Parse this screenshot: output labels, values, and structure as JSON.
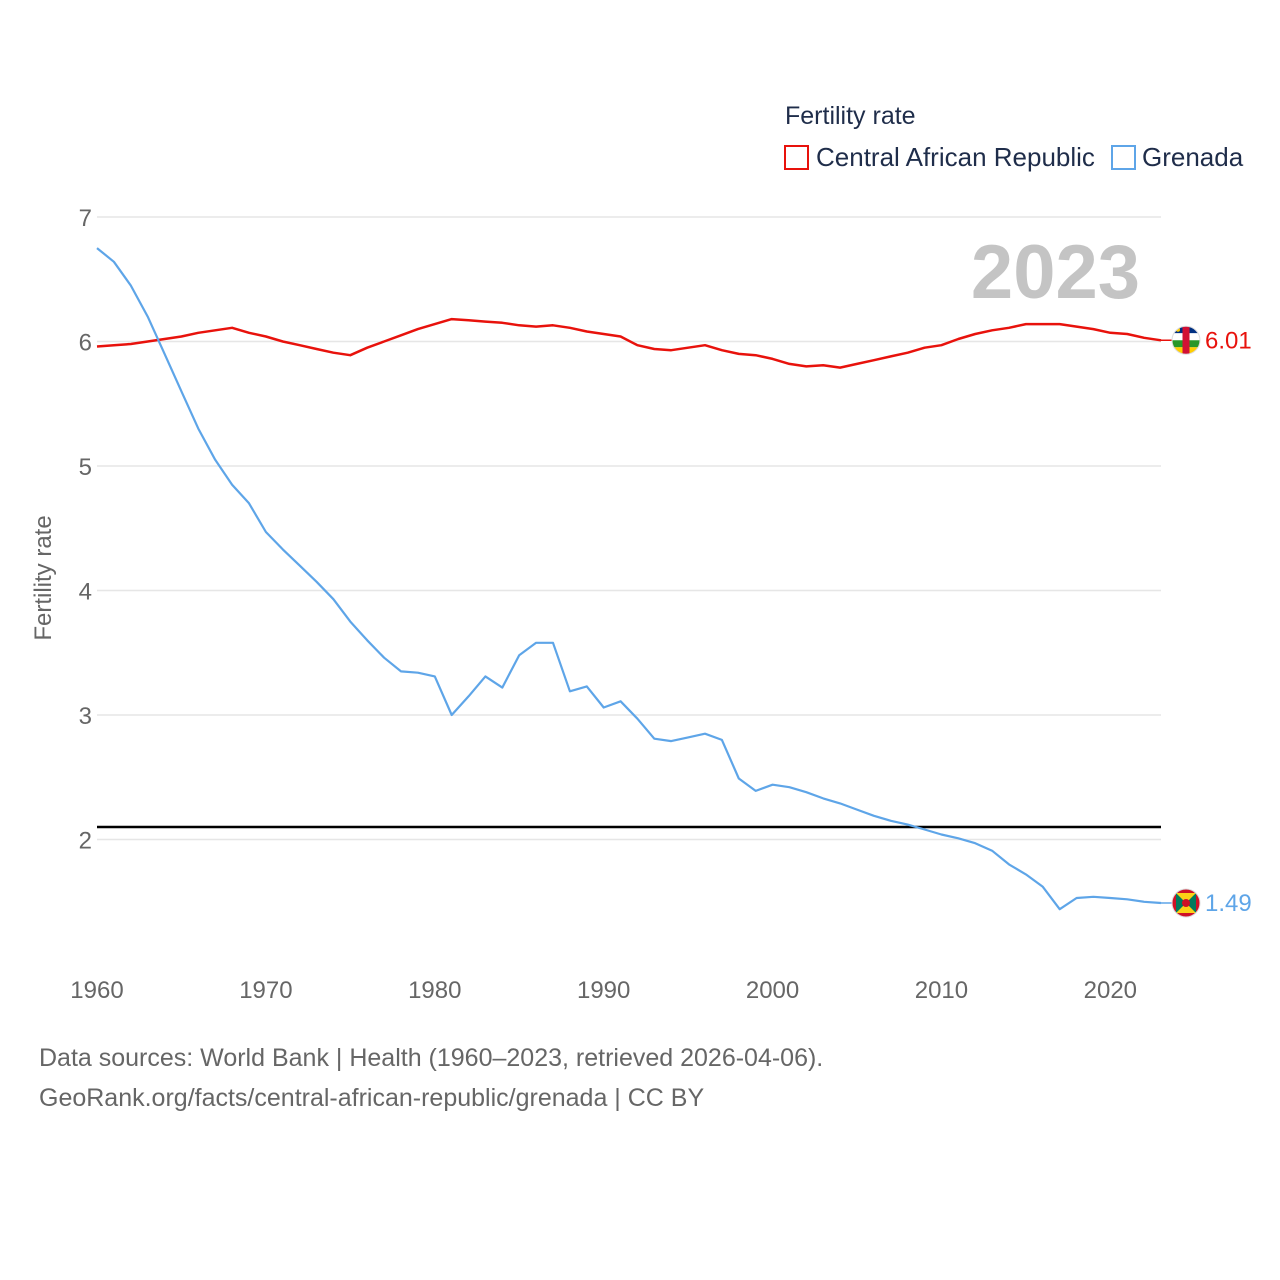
{
  "chart_data": {
    "type": "line",
    "legend_title": "Fertility rate",
    "ylabel": "Fertility rate",
    "xlabel": "",
    "xlim": [
      1960,
      2023
    ],
    "ylim": [
      1,
      7
    ],
    "yticks": [
      2,
      3,
      4,
      5,
      6,
      7
    ],
    "xticks": [
      1960,
      1970,
      1980,
      1990,
      2000,
      2010,
      2020
    ],
    "year_label": "2023",
    "reference_line": 2.1,
    "x": [
      1960,
      1961,
      1962,
      1963,
      1964,
      1965,
      1966,
      1967,
      1968,
      1969,
      1970,
      1971,
      1972,
      1973,
      1974,
      1975,
      1976,
      1977,
      1978,
      1979,
      1980,
      1981,
      1982,
      1983,
      1984,
      1985,
      1986,
      1987,
      1988,
      1989,
      1990,
      1991,
      1992,
      1993,
      1994,
      1995,
      1996,
      1997,
      1998,
      1999,
      2000,
      2001,
      2002,
      2003,
      2004,
      2005,
      2006,
      2007,
      2008,
      2009,
      2010,
      2011,
      2012,
      2013,
      2014,
      2015,
      2016,
      2017,
      2018,
      2019,
      2020,
      2021,
      2022,
      2023
    ],
    "series": [
      {
        "name": "Central African Republic",
        "color": "#e8120c",
        "end_label": "6.01",
        "flag": "central-african-republic-flag-icon",
        "values": [
          5.96,
          5.97,
          5.98,
          6.0,
          6.02,
          6.04,
          6.07,
          6.09,
          6.11,
          6.07,
          6.04,
          6.0,
          5.97,
          5.94,
          5.91,
          5.89,
          5.95,
          6.0,
          6.05,
          6.1,
          6.14,
          6.18,
          6.17,
          6.16,
          6.15,
          6.13,
          6.12,
          6.13,
          6.11,
          6.08,
          6.06,
          6.04,
          5.97,
          5.94,
          5.93,
          5.95,
          5.97,
          5.93,
          5.9,
          5.89,
          5.86,
          5.82,
          5.8,
          5.81,
          5.79,
          5.82,
          5.85,
          5.88,
          5.91,
          5.95,
          5.97,
          6.02,
          6.06,
          6.09,
          6.11,
          6.14,
          6.14,
          6.14,
          6.12,
          6.1,
          6.07,
          6.06,
          6.03,
          6.01
        ]
      },
      {
        "name": "Grenada",
        "color": "#5ea5e8",
        "end_label": "1.49",
        "flag": "grenada-flag-icon",
        "values": [
          6.75,
          6.64,
          6.45,
          6.2,
          5.9,
          5.6,
          5.3,
          5.05,
          4.85,
          4.7,
          4.47,
          4.33,
          4.2,
          4.07,
          3.93,
          3.75,
          3.6,
          3.46,
          3.35,
          3.34,
          3.31,
          3.0,
          3.15,
          3.31,
          3.22,
          3.48,
          3.58,
          3.58,
          3.19,
          3.23,
          3.06,
          3.11,
          2.97,
          2.81,
          2.79,
          2.82,
          2.85,
          2.8,
          2.49,
          2.39,
          2.44,
          2.42,
          2.38,
          2.33,
          2.29,
          2.24,
          2.19,
          2.15,
          2.12,
          2.08,
          2.04,
          2.01,
          1.97,
          1.91,
          1.8,
          1.72,
          1.62,
          1.44,
          1.53,
          1.54,
          1.53,
          1.52,
          1.5,
          1.49
        ]
      }
    ]
  },
  "footer": {
    "line1": "Data sources: World Bank | Health (1960–2023, retrieved 2026-04-06).",
    "line2": "GeoRank.org/facts/central-african-republic/grenada | CC BY"
  }
}
